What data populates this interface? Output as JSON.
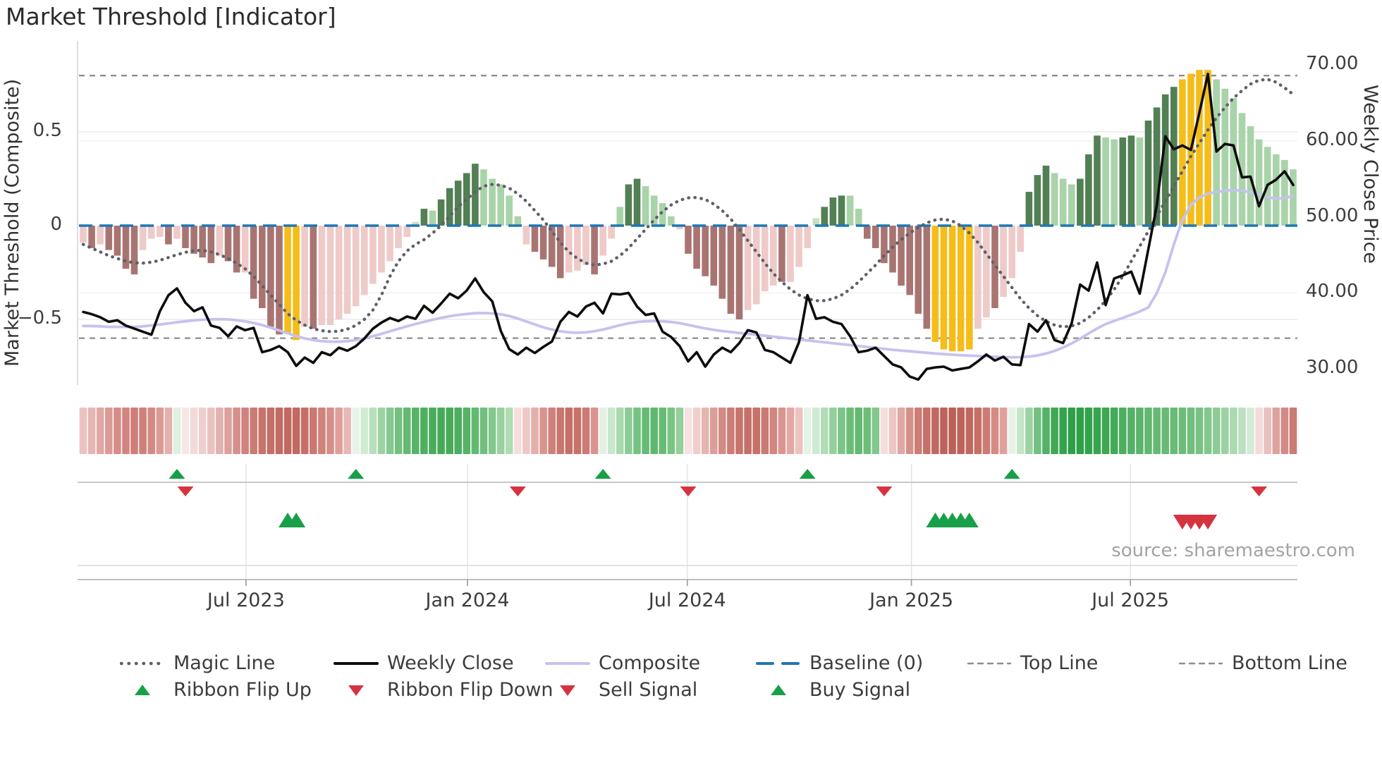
{
  "title": "Market Threshold [Indicator]",
  "source": "source: sharemaestro.com",
  "axes": {
    "left_title": "Market Threshold (Composite)",
    "right_title": "Weekly Close Price",
    "left_ticks": [
      {
        "label": "0.5",
        "value": 0.5
      },
      {
        "label": "0",
        "value": 0
      },
      {
        "label": "−0.5",
        "value": -0.5
      }
    ],
    "right_ticks": [
      {
        "label": "70.00",
        "value": 70
      },
      {
        "label": "60.00",
        "value": 60
      },
      {
        "label": "50.00",
        "value": 50
      },
      {
        "label": "40.00",
        "value": 40
      },
      {
        "label": "30.00",
        "value": 30
      }
    ],
    "x_ticks": [
      {
        "label": "Jul 2023",
        "week": 19.6
      },
      {
        "label": "Jan 2024",
        "week": 45.6
      },
      {
        "label": "Jul 2024",
        "week": 71.4
      },
      {
        "label": "Jan 2025",
        "week": 97.7
      },
      {
        "label": "Jul 2025",
        "week": 123.4
      }
    ],
    "left_range": [
      -0.85,
      0.98
    ],
    "right_range": [
      28,
      70.6
    ]
  },
  "thresholds": {
    "baseline": 0,
    "top_line": 0.8,
    "bottom_line": -0.6
  },
  "palette": {
    "P": "#eecac8",
    "R": "#a87472",
    "Y": "#f5bd1a",
    "DG": "#527f54",
    "LG": "#a9d3a8",
    "PG": "#c6e1c4",
    "baseline_blue": "#1f77b4",
    "magic_gray": "#5d6167",
    "close_black": "#0d0d0d",
    "composite_lavender": "#c6c2ee",
    "threshold_gray": "#8d8d8d",
    "flip_up_green": "#18a048",
    "flip_down_red": "#d63340",
    "buy_green": "#18a048",
    "sell_red": "#d63340"
  },
  "chart_data": {
    "type": "bar+line indicator panel",
    "n_weeks": 143,
    "histogram": {
      "values": [
        -0.09,
        -0.12,
        -0.1,
        -0.13,
        -0.16,
        -0.23,
        -0.26,
        -0.13,
        -0.07,
        -0.06,
        -0.1,
        -0.07,
        -0.12,
        -0.15,
        -0.17,
        -0.2,
        -0.16,
        -0.19,
        -0.25,
        -0.25,
        -0.39,
        -0.44,
        -0.54,
        -0.58,
        -0.575,
        -0.61,
        -0.54,
        -0.55,
        -0.53,
        -0.53,
        -0.5,
        -0.47,
        -0.43,
        -0.37,
        -0.31,
        -0.25,
        -0.19,
        -0.12,
        -0.06,
        0.02,
        0.09,
        0.08,
        0.14,
        0.2,
        0.24,
        0.28,
        0.33,
        0.3,
        0.25,
        0.22,
        0.16,
        0.05,
        -0.1,
        -0.14,
        -0.18,
        -0.22,
        -0.28,
        -0.25,
        -0.24,
        -0.21,
        -0.26,
        -0.16,
        -0.07,
        0.1,
        0.22,
        0.25,
        0.21,
        0.16,
        0.12,
        0.05,
        -0.02,
        -0.15,
        -0.23,
        -0.27,
        -0.32,
        -0.39,
        -0.47,
        -0.5,
        -0.45,
        -0.42,
        -0.35,
        -0.32,
        -0.3,
        -0.3,
        -0.22,
        -0.12,
        0.04,
        0.1,
        0.15,
        0.16,
        0.16,
        0.09,
        -0.07,
        -0.12,
        -0.2,
        -0.25,
        -0.32,
        -0.37,
        -0.47,
        -0.55,
        -0.62,
        -0.66,
        -0.67,
        -0.67,
        -0.66,
        -0.55,
        -0.49,
        -0.44,
        -0.38,
        -0.28,
        -0.14,
        0.18,
        0.27,
        0.32,
        0.28,
        0.25,
        0.22,
        0.25,
        0.38,
        0.48,
        0.47,
        0.46,
        0.47,
        0.48,
        0.47,
        0.56,
        0.63,
        0.7,
        0.74,
        0.78,
        0.81,
        0.83,
        0.83,
        0.78,
        0.73,
        0.68,
        0.6,
        0.53,
        0.46,
        0.42,
        0.38,
        0.35,
        0.3
      ],
      "color_class": [
        "P",
        "R",
        "P",
        "R",
        "R",
        "R",
        "R",
        "P",
        "P",
        "P",
        "R",
        "P",
        "R",
        "R",
        "R",
        "R",
        "P",
        "R",
        "R",
        "P",
        "R",
        "R",
        "R",
        "R",
        "Y",
        "Y",
        "P",
        "R",
        "P",
        "P",
        "P",
        "P",
        "P",
        "P",
        "P",
        "P",
        "P",
        "P",
        "P",
        "PG",
        "DG",
        "LG",
        "DG",
        "DG",
        "DG",
        "DG",
        "DG",
        "LG",
        "LG",
        "LG",
        "LG",
        "LG",
        "P",
        "R",
        "R",
        "R",
        "R",
        "P",
        "P",
        "P",
        "R",
        "P",
        "P",
        "LG",
        "DG",
        "DG",
        "LG",
        "LG",
        "LG",
        "LG",
        "P",
        "R",
        "R",
        "R",
        "R",
        "R",
        "R",
        "R",
        "P",
        "P",
        "P",
        "P",
        "R",
        "P",
        "P",
        "P",
        "PG",
        "DG",
        "DG",
        "DG",
        "LG",
        "LG",
        "R",
        "R",
        "R",
        "R",
        "R",
        "R",
        "R",
        "R",
        "Y",
        "Y",
        "Y",
        "Y",
        "Y",
        "P",
        "P",
        "R",
        "P",
        "P",
        "P",
        "DG",
        "DG",
        "DG",
        "LG",
        "LG",
        "LG",
        "DG",
        "DG",
        "DG",
        "LG",
        "LG",
        "DG",
        "DG",
        "LG",
        "DG",
        "DG",
        "DG",
        "DG",
        "Y",
        "Y",
        "Y",
        "Y",
        "LG",
        "LG",
        "LG",
        "LG",
        "LG",
        "LG",
        "LG",
        "LG",
        "LG",
        "LG"
      ]
    },
    "weekly_close": [
      37.5,
      37.2,
      36.8,
      36.2,
      36.4,
      35.7,
      35.3,
      34.9,
      34.5,
      37.6,
      39.7,
      40.6,
      38.7,
      37.6,
      38.1,
      35.7,
      35.4,
      34.3,
      35.6,
      35.1,
      35.4,
      32.2,
      32.5,
      33.0,
      32.2,
      30.4,
      31.5,
      30.8,
      32.2,
      31.8,
      32.8,
      32.4,
      33.0,
      34.0,
      35.3,
      36.1,
      36.7,
      36.3,
      36.9,
      36.6,
      38.3,
      37.4,
      38.6,
      39.9,
      39.3,
      40.3,
      41.9,
      40.1,
      38.9,
      35.0,
      32.6,
      31.9,
      32.8,
      32.1,
      32.9,
      33.6,
      36.2,
      37.5,
      36.9,
      38.2,
      38.7,
      37.3,
      39.9,
      39.8,
      40.0,
      38.2,
      37.1,
      37.3,
      34.9,
      34.2,
      33.0,
      31.0,
      32.2,
      30.3,
      31.9,
      32.8,
      32.2,
      33.4,
      35.1,
      34.8,
      32.5,
      32.2,
      31.5,
      30.8,
      33.5,
      39.7,
      36.6,
      36.8,
      36.2,
      35.9,
      34.3,
      32.2,
      32.4,
      32.8,
      31.7,
      30.6,
      30.2,
      29.0,
      28.6,
      30.0,
      30.2,
      30.3,
      29.8,
      30.0,
      30.2,
      31.0,
      31.9,
      31.1,
      31.6,
      30.6,
      30.5,
      35.9,
      34.9,
      36.4,
      33.8,
      33.4,
      36.0,
      41.1,
      40.3,
      44.0,
      38.4,
      41.9,
      42.3,
      42.8,
      39.9,
      45.7,
      51.5,
      60.6,
      58.9,
      59.4,
      58.8,
      63.7,
      68.8,
      58.6,
      59.6,
      59.4,
      55.2,
      55.3,
      51.4,
      54.2,
      54.9,
      56.0,
      54.2
    ],
    "magic_line": [
      -0.1,
      -0.12,
      -0.14,
      -0.16,
      -0.175,
      -0.19,
      -0.198,
      -0.2,
      -0.195,
      -0.185,
      -0.17,
      -0.155,
      -0.142,
      -0.133,
      -0.132,
      -0.14,
      -0.155,
      -0.175,
      -0.2,
      -0.23,
      -0.27,
      -0.32,
      -0.37,
      -0.42,
      -0.47,
      -0.505,
      -0.53,
      -0.55,
      -0.56,
      -0.565,
      -0.563,
      -0.552,
      -0.532,
      -0.5,
      -0.45,
      -0.37,
      -0.27,
      -0.19,
      -0.135,
      -0.1,
      -0.075,
      -0.04,
      0.0,
      0.05,
      0.1,
      0.14,
      0.18,
      0.21,
      0.22,
      0.215,
      0.2,
      0.17,
      0.13,
      0.08,
      0.03,
      -0.03,
      -0.09,
      -0.14,
      -0.175,
      -0.2,
      -0.21,
      -0.205,
      -0.19,
      -0.16,
      -0.12,
      -0.07,
      -0.02,
      0.03,
      0.075,
      0.11,
      0.135,
      0.148,
      0.15,
      0.14,
      0.115,
      0.08,
      0.035,
      -0.02,
      -0.08,
      -0.14,
      -0.2,
      -0.255,
      -0.3,
      -0.34,
      -0.37,
      -0.39,
      -0.4,
      -0.4,
      -0.39,
      -0.37,
      -0.34,
      -0.3,
      -0.255,
      -0.21,
      -0.16,
      -0.115,
      -0.075,
      -0.04,
      -0.01,
      0.015,
      0.03,
      0.035,
      0.025,
      0.0,
      -0.04,
      -0.09,
      -0.15,
      -0.21,
      -0.27,
      -0.33,
      -0.39,
      -0.44,
      -0.48,
      -0.51,
      -0.53,
      -0.54,
      -0.535,
      -0.52,
      -0.49,
      -0.45,
      -0.4,
      -0.34,
      -0.27,
      -0.19,
      -0.11,
      -0.03,
      0.05,
      0.13,
      0.21,
      0.29,
      0.37,
      0.44,
      0.51,
      0.575,
      0.63,
      0.68,
      0.72,
      0.755,
      0.775,
      0.78,
      0.765,
      0.735,
      0.7
    ],
    "composite_line": [
      -0.535,
      -0.535,
      -0.537,
      -0.54,
      -0.54,
      -0.54,
      -0.54,
      -0.537,
      -0.532,
      -0.527,
      -0.521,
      -0.515,
      -0.51,
      -0.505,
      -0.502,
      -0.5,
      -0.499,
      -0.5,
      -0.504,
      -0.51,
      -0.519,
      -0.53,
      -0.544,
      -0.559,
      -0.574,
      -0.589,
      -0.601,
      -0.61,
      -0.616,
      -0.619,
      -0.619,
      -0.616,
      -0.61,
      -0.601,
      -0.59,
      -0.577,
      -0.563,
      -0.55,
      -0.537,
      -0.525,
      -0.513,
      -0.502,
      -0.492,
      -0.483,
      -0.476,
      -0.471,
      -0.467,
      -0.466,
      -0.468,
      -0.473,
      -0.482,
      -0.495,
      -0.511,
      -0.527,
      -0.542,
      -0.554,
      -0.563,
      -0.569,
      -0.571,
      -0.569,
      -0.563,
      -0.554,
      -0.543,
      -0.531,
      -0.521,
      -0.514,
      -0.51,
      -0.509,
      -0.51,
      -0.514,
      -0.52,
      -0.529,
      -0.539,
      -0.548,
      -0.556,
      -0.562,
      -0.567,
      -0.572,
      -0.577,
      -0.582,
      -0.587,
      -0.592,
      -0.597,
      -0.602,
      -0.607,
      -0.612,
      -0.617,
      -0.622,
      -0.627,
      -0.632,
      -0.637,
      -0.642,
      -0.647,
      -0.652,
      -0.657,
      -0.662,
      -0.666,
      -0.67,
      -0.674,
      -0.678,
      -0.682,
      -0.685,
      -0.688,
      -0.691,
      -0.693,
      -0.695,
      -0.697,
      -0.699,
      -0.701,
      -0.702,
      -0.701,
      -0.698,
      -0.692,
      -0.682,
      -0.668,
      -0.65,
      -0.628,
      -0.603,
      -0.575,
      -0.548,
      -0.525,
      -0.508,
      -0.492,
      -0.475,
      -0.458,
      -0.436,
      -0.36,
      -0.25,
      -0.1,
      0.03,
      0.11,
      0.15,
      0.17,
      0.18,
      0.186,
      0.19,
      0.186,
      0.178,
      0.165,
      0.152,
      0.143,
      0.148,
      0.158
    ],
    "ribbon_colors": [
      "#edc3c1",
      "#e7b5b2",
      "#e2a8a5",
      "#dc9a96",
      "#d68d89",
      "#d28480",
      "#cf7d78",
      "#d0807b",
      "#d58985",
      "#dc9a96",
      "#e5b0ad",
      "#dff0e0",
      "#f7e7e6",
      "#f3dad8",
      "#eecfcd",
      "#e9c2bf",
      "#e3b1ae",
      "#dda19d",
      "#d6908c",
      "#d0837e",
      "#cb7a74",
      "#c7736c",
      "#c46e67",
      "#c26a63",
      "#c1685f",
      "#c26961",
      "#c56f68",
      "#ca7871",
      "#d0827c",
      "#d78f8a",
      "#df9f9b",
      "#e9b7b4",
      "#e8f4e8",
      "#d1ebd3",
      "#b8dfbc",
      "#9dd3a4",
      "#86c88f",
      "#73c080",
      "#64b973",
      "#58b369",
      "#4faf61",
      "#49ac5c",
      "#46aa59",
      "#48ab5b",
      "#4ead60",
      "#57b268",
      "#63b872",
      "#72bf7f",
      "#84c78e",
      "#99d19f",
      "#b0dcb4",
      "#f5dedc",
      "#edc9c6",
      "#e3b0ac",
      "#d8958f",
      "#cf827c",
      "#c9766e",
      "#c66f67",
      "#c87269",
      "#cd7b74",
      "#da948f",
      "#e3f1e3",
      "#c8e7cb",
      "#a9d9af",
      "#8ccb96",
      "#76c283",
      "#67ba75",
      "#60b76f",
      "#68bb75",
      "#7ac481",
      "#95cf9c",
      "#f7e3e2",
      "#efcecc",
      "#e5b5b1",
      "#db9e99",
      "#d28b85",
      "#cb7d76",
      "#c7746c",
      "#c57069",
      "#c6726a",
      "#cb7a73",
      "#d2867f",
      "#da9590",
      "#e3a8a4",
      "#eec2bf",
      "#e7f3e7",
      "#cfead2",
      "#b1dcb6",
      "#94cf9d",
      "#7cc487",
      "#6cbc78",
      "#64b871",
      "#6ebd7a",
      "#83c78d",
      "#f5dedc",
      "#ecc6c3",
      "#e0a8a4",
      "#d4908a",
      "#cb7d76",
      "#c5716a",
      "#c06861",
      "#bd635b",
      "#bc6158",
      "#bd635a",
      "#c0685f",
      "#c56f67",
      "#cc7b74",
      "#d58b85",
      "#e0a19d",
      "#e6f3e6",
      "#c4e6c8",
      "#9cd3a4",
      "#74c081",
      "#55b167",
      "#41a857",
      "#35a34d",
      "#2fa049",
      "#2fa049",
      "#32a24c",
      "#37a450",
      "#3da753",
      "#44aa58",
      "#4cae5f",
      "#55b167",
      "#5cb46c",
      "#62b771",
      "#66b974",
      "#68ba76",
      "#6abb77",
      "#6dbc79",
      "#72bf7d",
      "#79c283",
      "#82c78c",
      "#8ecb96",
      "#9cd2a3",
      "#abd9b1",
      "#bce0c0",
      "#d3ecd6",
      "#f4dbd9",
      "#e9c0bd",
      "#dda29d",
      "#d28a84",
      "#ca7b74"
    ],
    "signals": {
      "ribbon_flip_up_weeks": [
        11,
        32,
        61,
        85,
        109
      ],
      "ribbon_flip_down_weeks": [
        12,
        51,
        71,
        94,
        138
      ],
      "buy_signal_weeks": [
        24,
        25,
        100,
        101,
        102,
        103,
        104
      ],
      "sell_signal_weeks": [
        129,
        130,
        131,
        132
      ]
    }
  },
  "legend": {
    "row1": [
      {
        "label": "Magic Line",
        "style": "dotted-gray"
      },
      {
        "label": "Weekly Close",
        "style": "solid-black"
      },
      {
        "label": "Composite",
        "style": "solid-lavender"
      },
      {
        "label": "Baseline (0)",
        "style": "dashed-blue"
      },
      {
        "label": "Top Line",
        "style": "dashed-gray"
      },
      {
        "label": "Bottom Line",
        "style": "dashed-gray"
      }
    ],
    "row2": [
      {
        "label": "Ribbon Flip Up",
        "style": "tri-up-green"
      },
      {
        "label": "Ribbon Flip Down",
        "style": "tri-down-red"
      },
      {
        "label": "Sell Signal",
        "style": "tri-down-red"
      },
      {
        "label": "Buy Signal",
        "style": "tri-up-green"
      }
    ]
  }
}
